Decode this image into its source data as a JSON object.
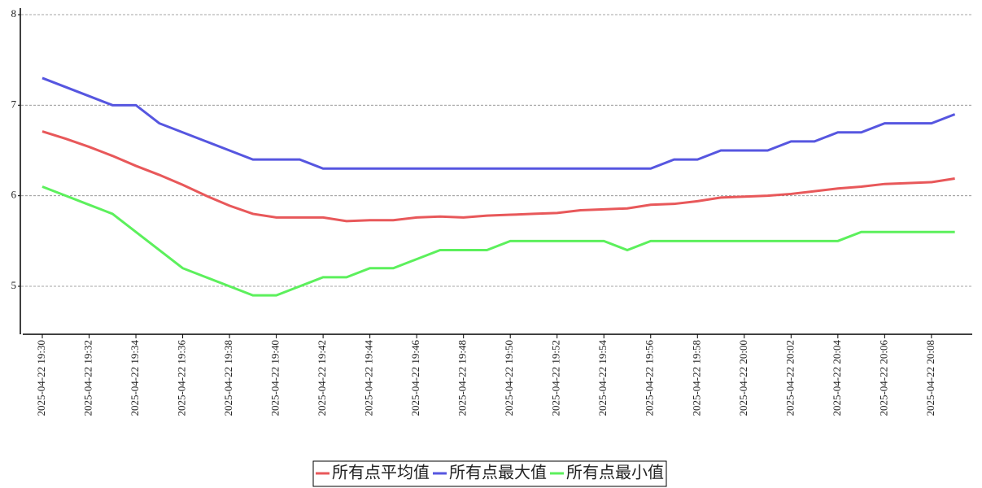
{
  "chart_data": {
    "type": "line",
    "categories": [
      "2025-04-22 19:30",
      null,
      "2025-04-22 19:32",
      null,
      "2025-04-22 19:34",
      null,
      "2025-04-22 19:36",
      null,
      "2025-04-22 19:38",
      null,
      "2025-04-22 19:40",
      null,
      "2025-04-22 19:42",
      null,
      "2025-04-22 19:44",
      null,
      "2025-04-22 19:46",
      null,
      "2025-04-22 19:48",
      null,
      "2025-04-22 19:50",
      null,
      "2025-04-22 19:52",
      null,
      "2025-04-22 19:54",
      null,
      "2025-04-22 19:56",
      null,
      "2025-04-22 19:58",
      null,
      "2025-04-22 20:00",
      null,
      "2025-04-22 20:02",
      null,
      "2025-04-22 20:04",
      null,
      "2025-04-22 20:06",
      null,
      "2025-04-22 20:08",
      null
    ],
    "series": [
      {
        "name": "所有点平均值",
        "color": "#e8585a",
        "values": [
          6.71,
          6.63,
          6.54,
          6.44,
          6.33,
          6.23,
          6.12,
          6.0,
          5.89,
          5.8,
          5.76,
          5.76,
          5.76,
          5.72,
          5.73,
          5.73,
          5.76,
          5.77,
          5.76,
          5.78,
          5.79,
          5.8,
          5.81,
          5.84,
          5.85,
          5.86,
          5.9,
          5.91,
          5.94,
          5.98,
          5.99,
          6.0,
          6.02,
          6.05,
          6.08,
          6.1,
          6.13,
          6.14,
          6.15,
          6.19
        ]
      },
      {
        "name": "所有点最大值",
        "color": "#5656e0",
        "values": [
          7.3,
          7.2,
          7.1,
          7.0,
          7.0,
          6.8,
          6.7,
          6.6,
          6.5,
          6.4,
          6.4,
          6.4,
          6.3,
          6.3,
          6.3,
          6.3,
          6.3,
          6.3,
          6.3,
          6.3,
          6.3,
          6.3,
          6.3,
          6.3,
          6.3,
          6.3,
          6.3,
          6.4,
          6.4,
          6.5,
          6.5,
          6.5,
          6.6,
          6.6,
          6.7,
          6.7,
          6.8,
          6.8,
          6.8,
          6.9
        ]
      },
      {
        "name": "所有点最小值",
        "color": "#5cf05c",
        "values": [
          6.1,
          6.0,
          5.9,
          5.8,
          5.6,
          5.4,
          5.2,
          5.1,
          5.0,
          4.9,
          4.9,
          5.0,
          5.1,
          5.1,
          5.2,
          5.2,
          5.3,
          5.4,
          5.4,
          5.4,
          5.5,
          5.5,
          5.5,
          5.5,
          5.5,
          5.4,
          5.5,
          5.5,
          5.5,
          5.5,
          5.5,
          5.5,
          5.5,
          5.5,
          5.5,
          5.6,
          5.6,
          5.6,
          5.6,
          5.6
        ]
      }
    ],
    "ylim": [
      4.47,
      8.0
    ],
    "yticks": [
      5,
      6,
      7,
      8
    ],
    "grid": true,
    "legend": "bottom"
  }
}
